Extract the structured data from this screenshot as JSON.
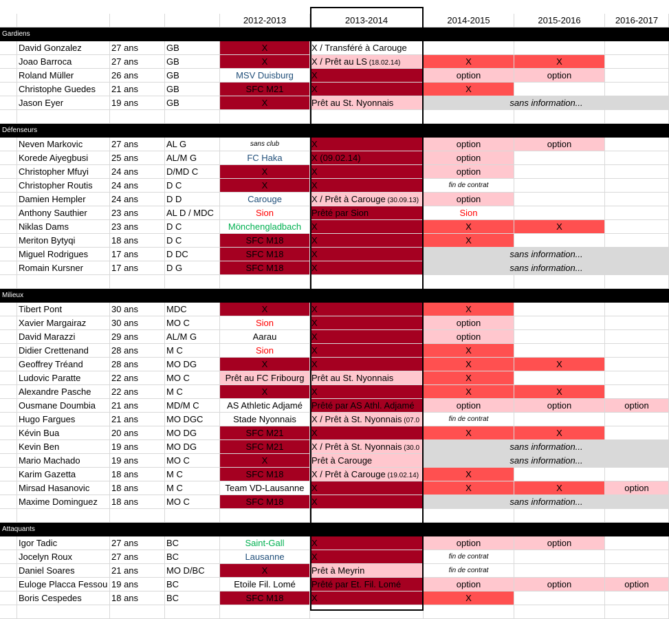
{
  "headers": [
    "",
    "",
    "",
    "",
    "2012-2013",
    "2013-2014",
    "2014-2015",
    "2015-2016",
    "2016-2017"
  ],
  "sections": [
    {
      "title": "Gardiens",
      "players": [
        {
          "name": "David Gonzalez",
          "age": "27 ans",
          "pos": "GB",
          "c12": {
            "t": "X",
            "f": "dark"
          },
          "c13": {
            "t": "X / Transféré à Carouge",
            "f": ""
          },
          "c14": {
            "t": "",
            "f": ""
          },
          "c15": {
            "t": "",
            "f": ""
          },
          "c16": {
            "t": "",
            "f": ""
          }
        },
        {
          "name": "Joao Barroca",
          "age": "27 ans",
          "pos": "GB",
          "c12": {
            "t": "X",
            "f": "dark"
          },
          "c13": {
            "t": "X / Prêt au LS",
            "s": "(18.02.14)",
            "f": "pink"
          },
          "c14": {
            "t": "X",
            "f": "red"
          },
          "c15": {
            "t": "X",
            "f": "red"
          },
          "c16": {
            "t": "",
            "f": ""
          }
        },
        {
          "name": "Roland Müller",
          "age": "26 ans",
          "pos": "GB",
          "c12": {
            "t": "MSV Duisburg",
            "f": "",
            "c": "t-blue"
          },
          "c13": {
            "t": "X",
            "f": "dark"
          },
          "c14": {
            "t": "option",
            "f": "pink"
          },
          "c15": {
            "t": "option",
            "f": "pink"
          },
          "c16": {
            "t": "",
            "f": ""
          }
        },
        {
          "name": "Christophe Guedes",
          "age": "21 ans",
          "pos": "GB",
          "c12": {
            "t": "SFC M21",
            "f": "dark"
          },
          "c13": {
            "t": "X",
            "f": "dark"
          },
          "c14": {
            "t": "X",
            "f": "red"
          },
          "c15": {
            "t": "",
            "f": ""
          },
          "c16": {
            "t": "",
            "f": ""
          }
        },
        {
          "name": "Jason Eyer",
          "age": "19 ans",
          "pos": "GB",
          "c12": {
            "t": "X",
            "f": "dark"
          },
          "c13": {
            "t": "Prêt au St. Nyonnais",
            "f": "pink"
          },
          "info": "sans information..."
        }
      ]
    },
    {
      "title": "Défenseurs",
      "players": [
        {
          "name": "Neven Markovic",
          "age": "27 ans",
          "pos": "AL G",
          "c12": {
            "t": "sans club",
            "f": "",
            "c": "small it"
          },
          "c13": {
            "t": "X",
            "f": "dark"
          },
          "c14": {
            "t": "option",
            "f": "pink"
          },
          "c15": {
            "t": "option",
            "f": "pink"
          },
          "c16": {
            "t": "",
            "f": ""
          }
        },
        {
          "name": "Korede Aiyegbusi",
          "age": "25 ans",
          "pos": "AL/M G",
          "c12": {
            "t": "FC Haka",
            "f": "",
            "c": "t-blue"
          },
          "c13": {
            "t": "X (09.02.14)",
            "f": "dark"
          },
          "c14": {
            "t": "option",
            "f": "pink"
          },
          "c15": {
            "t": "",
            "f": ""
          },
          "c16": {
            "t": "",
            "f": ""
          }
        },
        {
          "name": "Christopher Mfuyi",
          "age": "24 ans",
          "pos": "D/MD C",
          "c12": {
            "t": "X",
            "f": "dark"
          },
          "c13": {
            "t": "X",
            "f": "dark"
          },
          "c14": {
            "t": "option",
            "f": "pink"
          },
          "c15": {
            "t": "",
            "f": ""
          },
          "c16": {
            "t": "",
            "f": ""
          }
        },
        {
          "name": "Christopher Routis",
          "age": "24 ans",
          "pos": "D C",
          "c12": {
            "t": "X",
            "f": "dark"
          },
          "c13": {
            "t": "X",
            "f": "dark"
          },
          "c14": {
            "t": "fin de contrat",
            "f": "",
            "c": "small it"
          },
          "c15": {
            "t": "",
            "f": ""
          },
          "c16": {
            "t": "",
            "f": ""
          }
        },
        {
          "name": "Damien Hempler",
          "age": "24 ans",
          "pos": "D D",
          "c12": {
            "t": "Carouge",
            "f": "",
            "c": "t-blue"
          },
          "c13": {
            "t": "X / Prêt à Carouge",
            "s": "(30.09.13)",
            "f": "pink"
          },
          "c14": {
            "t": "option",
            "f": "pink"
          },
          "c15": {
            "t": "",
            "f": ""
          },
          "c16": {
            "t": "",
            "f": ""
          }
        },
        {
          "name": "Anthony Sauthier",
          "age": "23 ans",
          "pos": "AL D / MDC",
          "c12": {
            "t": "Sion",
            "f": "",
            "c": "t-red"
          },
          "c13": {
            "t": "Prêté par Sion",
            "f": "dark"
          },
          "c14": {
            "t": "Sion",
            "f": "",
            "c": "t-red"
          },
          "c15": {
            "t": "",
            "f": ""
          },
          "c16": {
            "t": "",
            "f": ""
          }
        },
        {
          "name": "Niklas Dams",
          "age": "23 ans",
          "pos": "D C",
          "c12": {
            "t": "Mönchengladbach",
            "f": "",
            "c": "t-green"
          },
          "c13": {
            "t": "X",
            "f": "dark"
          },
          "c14": {
            "t": "X",
            "f": "red"
          },
          "c15": {
            "t": "X",
            "f": "red"
          },
          "c16": {
            "t": "",
            "f": ""
          }
        },
        {
          "name": "Meriton Bytyqi",
          "age": "18 ans",
          "pos": "D C",
          "c12": {
            "t": "SFC M18",
            "f": "dark"
          },
          "c13": {
            "t": "X",
            "f": "dark"
          },
          "c14": {
            "t": "X",
            "f": "red"
          },
          "c15": {
            "t": "",
            "f": ""
          },
          "c16": {
            "t": "",
            "f": ""
          }
        },
        {
          "name": "Miguel Rodrigues",
          "age": "17 ans",
          "pos": "D DC",
          "c12": {
            "t": "SFC M18",
            "f": "dark"
          },
          "c13": {
            "t": "X",
            "f": "dark"
          },
          "info": "sans information..."
        },
        {
          "name": "Romain Kursner",
          "age": "17 ans",
          "pos": "D G",
          "c12": {
            "t": "SFC M18",
            "f": "dark"
          },
          "c13": {
            "t": "X",
            "f": "dark"
          },
          "info": "sans information..."
        }
      ]
    },
    {
      "title": "Milieux",
      "players": [
        {
          "name": "Tibert Pont",
          "age": "30 ans",
          "pos": "MDC",
          "c12": {
            "t": "X",
            "f": "dark"
          },
          "c13": {
            "t": "X",
            "f": "dark"
          },
          "c14": {
            "t": "X",
            "f": "red"
          },
          "c15": {
            "t": "",
            "f": ""
          },
          "c16": {
            "t": "",
            "f": ""
          }
        },
        {
          "name": "Xavier Margairaz",
          "age": "30 ans",
          "pos": "MO C",
          "c12": {
            "t": "Sion",
            "f": "",
            "c": "t-red"
          },
          "c13": {
            "t": "X",
            "f": "dark"
          },
          "c14": {
            "t": "option",
            "f": "pink"
          },
          "c15": {
            "t": "",
            "f": ""
          },
          "c16": {
            "t": "",
            "f": ""
          }
        },
        {
          "name": "David Marazzi",
          "age": "29 ans",
          "pos": "AL/M G",
          "c12": {
            "t": "Aarau",
            "f": ""
          },
          "c13": {
            "t": "X",
            "f": "dark"
          },
          "c14": {
            "t": "option",
            "f": "pink"
          },
          "c15": {
            "t": "",
            "f": ""
          },
          "c16": {
            "t": "",
            "f": ""
          }
        },
        {
          "name": "Didier Crettenand",
          "age": "28 ans",
          "pos": "M C",
          "c12": {
            "t": "Sion",
            "f": "",
            "c": "t-red"
          },
          "c13": {
            "t": "X",
            "f": "dark"
          },
          "c14": {
            "t": "X",
            "f": "red"
          },
          "c15": {
            "t": "",
            "f": ""
          },
          "c16": {
            "t": "",
            "f": ""
          }
        },
        {
          "name": "Geoffrey Tréand",
          "age": "28 ans",
          "pos": "MO DG",
          "c12": {
            "t": "X",
            "f": "dark"
          },
          "c13": {
            "t": "X",
            "f": "dark"
          },
          "c14": {
            "t": "X",
            "f": "red"
          },
          "c15": {
            "t": "X",
            "f": "red"
          },
          "c16": {
            "t": "",
            "f": ""
          }
        },
        {
          "name": "Ludovic Paratte",
          "age": "22 ans",
          "pos": "MO C",
          "c12": {
            "t": "Prêt au FC Fribourg",
            "f": "pink"
          },
          "c13": {
            "t": "Prêt au St. Nyonnais",
            "f": "pink"
          },
          "c14": {
            "t": "X",
            "f": "red"
          },
          "c15": {
            "t": "",
            "f": ""
          },
          "c16": {
            "t": "",
            "f": ""
          }
        },
        {
          "name": "Alexandre Pasche",
          "age": "22 ans",
          "pos": "M C",
          "c12": {
            "t": "X",
            "f": "dark"
          },
          "c13": {
            "t": "X",
            "f": "dark"
          },
          "c14": {
            "t": "X",
            "f": "red"
          },
          "c15": {
            "t": "X",
            "f": "red"
          },
          "c16": {
            "t": "",
            "f": ""
          }
        },
        {
          "name": "Ousmane Doumbia",
          "age": "21 ans",
          "pos": "MD/M C",
          "c12": {
            "t": "AS Athletic Adjamé",
            "f": ""
          },
          "c13": {
            "t": "Prêté par AS Athl. Adjamé",
            "f": "dark"
          },
          "c14": {
            "t": "option",
            "f": "pink"
          },
          "c15": {
            "t": "option",
            "f": "pink"
          },
          "c16": {
            "t": "option",
            "f": "pink"
          }
        },
        {
          "name": "Hugo Fargues",
          "age": "21 ans",
          "pos": "MO DGC",
          "c12": {
            "t": "Stade Nyonnais",
            "f": "",
            "c": "t-dark"
          },
          "c13": {
            "t": "X / Prêt à St. Nyonnais",
            "s": "(07.0",
            "f": "pink"
          },
          "c14": {
            "t": "fin de contrat",
            "f": "",
            "c": "small it"
          },
          "c15": {
            "t": "",
            "f": ""
          },
          "c16": {
            "t": "",
            "f": ""
          }
        },
        {
          "name": "Kévin Bua",
          "age": "20 ans",
          "pos": "MO DG",
          "c12": {
            "t": "SFC M21",
            "f": "dark"
          },
          "c13": {
            "t": "X",
            "f": "dark"
          },
          "c14": {
            "t": "X",
            "f": "red"
          },
          "c15": {
            "t": "X",
            "f": "red"
          },
          "c16": {
            "t": "",
            "f": ""
          }
        },
        {
          "name": "Kevin Ben",
          "age": "19 ans",
          "pos": "MO DG",
          "c12": {
            "t": "SFC M21",
            "f": "dark"
          },
          "c13": {
            "t": "X / Prêt à St. Nyonnais",
            "s": "(30.0",
            "f": "pink"
          },
          "info": "sans information..."
        },
        {
          "name": "Mario Machado",
          "age": "19 ans",
          "pos": "MO C",
          "c12": {
            "t": "X",
            "f": "dark"
          },
          "c13": {
            "t": "Prêt à Carouge",
            "f": "pink"
          },
          "info": "sans information..."
        },
        {
          "name": "Karim Gazetta",
          "age": "18 ans",
          "pos": "M C",
          "c12": {
            "t": "SFC M18",
            "f": "dark"
          },
          "c13": {
            "t": "X / Prêt à Carouge",
            "s": "(19.02.14)",
            "f": "pink"
          },
          "c14": {
            "t": "X",
            "f": "red"
          },
          "c15": {
            "t": "",
            "f": ""
          },
          "c16": {
            "t": "",
            "f": ""
          }
        },
        {
          "name": "Mirsad Hasanovic",
          "age": "18 ans",
          "pos": "M C",
          "c12": {
            "t": "Team VD-Lausanne",
            "f": ""
          },
          "c13": {
            "t": "X",
            "f": "dark"
          },
          "c14": {
            "t": "X",
            "f": "red"
          },
          "c15": {
            "t": "X",
            "f": "red"
          },
          "c16": {
            "t": "option",
            "f": "pink"
          }
        },
        {
          "name": "Maxime Dominguez",
          "age": "18 ans",
          "pos": "MO C",
          "c12": {
            "t": "SFC M18",
            "f": "dark"
          },
          "c13": {
            "t": "X",
            "f": "dark"
          },
          "info": "sans information..."
        }
      ]
    },
    {
      "title": "Attaquants",
      "players": [
        {
          "name": "Igor Tadic",
          "age": "27 ans",
          "pos": "BC",
          "c12": {
            "t": "Saint-Gall",
            "f": "",
            "c": "t-green"
          },
          "c13": {
            "t": "X",
            "f": "dark"
          },
          "c14": {
            "t": "option",
            "f": "pink"
          },
          "c15": {
            "t": "option",
            "f": "pink"
          },
          "c16": {
            "t": "",
            "f": ""
          }
        },
        {
          "name": "Jocelyn Roux",
          "age": "27 ans",
          "pos": "BC",
          "c12": {
            "t": "Lausanne",
            "f": "",
            "c": "t-blue"
          },
          "c13": {
            "t": "X",
            "f": "dark"
          },
          "c14": {
            "t": "fin de contrat",
            "f": "",
            "c": "small it"
          },
          "c15": {
            "t": "",
            "f": ""
          },
          "c16": {
            "t": "",
            "f": ""
          }
        },
        {
          "name": "Daniel Soares",
          "age": "21 ans",
          "pos": "MO D/BC",
          "c12": {
            "t": "X",
            "f": "dark"
          },
          "c13": {
            "t": "Prêt à Meyrin",
            "f": "pink"
          },
          "c14": {
            "t": "fin de contrat",
            "f": "",
            "c": "small it"
          },
          "c15": {
            "t": "",
            "f": ""
          },
          "c16": {
            "t": "",
            "f": ""
          }
        },
        {
          "name": "Euloge Placca Fessou",
          "age": "19 ans",
          "pos": "BC",
          "c12": {
            "t": "Etoile Fil. Lomé",
            "f": ""
          },
          "c13": {
            "t": "Prêté par Et. Fil. Lomé",
            "f": "dark"
          },
          "c14": {
            "t": "option",
            "f": "pink"
          },
          "c15": {
            "t": "option",
            "f": "pink"
          },
          "c16": {
            "t": "option",
            "f": "pink"
          }
        },
        {
          "name": "Boris Cespedes",
          "age": "18 ans",
          "pos": "BC",
          "c12": {
            "t": "SFC M18",
            "f": "dark"
          },
          "c13": {
            "t": "X",
            "f": "dark"
          },
          "c14": {
            "t": "X",
            "f": "red"
          },
          "c15": {
            "t": "",
            "f": ""
          },
          "c16": {
            "t": "",
            "f": ""
          }
        }
      ]
    }
  ],
  "colors": {
    "dark": "#a50021",
    "pink": "#ffc7ce",
    "red": "#ff5050",
    "grey": "#d9d9d9"
  }
}
